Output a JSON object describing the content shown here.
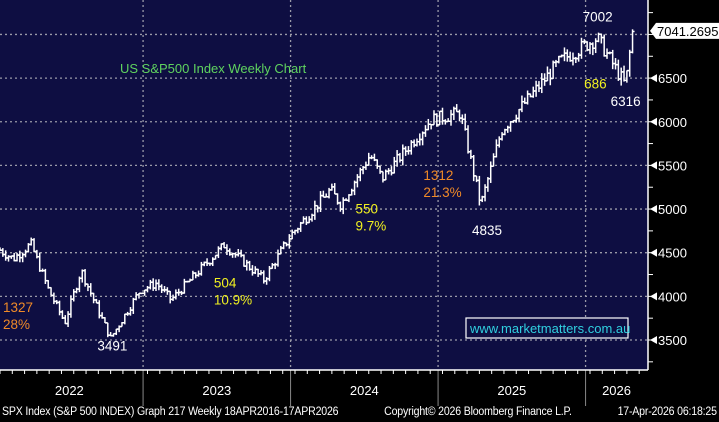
{
  "chart_data": {
    "type": "line",
    "style": "weekly-bars",
    "title": "US S&P500 Index Weekly Chart",
    "website": "www.marketmatters.com.au",
    "last_price_label": "7041.2695",
    "y_ticks": [
      "3500",
      "4000",
      "4500",
      "5000",
      "5500",
      "6000",
      "6500"
    ],
    "ylim": [
      3250,
      7450
    ],
    "x_ticks": [
      "2022",
      "2023",
      "2024",
      "2025",
      "2026"
    ],
    "xlim": [
      2022.03,
      2026.42
    ],
    "grid": true,
    "path": [
      [
        2022.03,
        4530
      ],
      [
        2022.12,
        4430
      ],
      [
        2022.24,
        4600
      ],
      [
        2022.36,
        4070
      ],
      [
        2022.47,
        3700
      ],
      [
        2022.58,
        4300
      ],
      [
        2022.68,
        3900
      ],
      [
        2022.78,
        3520
      ],
      [
        2022.98,
        4070
      ],
      [
        2023.09,
        4150
      ],
      [
        2023.19,
        3960
      ],
      [
        2023.55,
        4590
      ],
      [
        2023.82,
        4190
      ],
      [
        2024.0,
        4700
      ],
      [
        2024.27,
        5220
      ],
      [
        2024.34,
        5050
      ],
      [
        2024.54,
        5620
      ],
      [
        2024.62,
        5350
      ],
      [
        2024.95,
        6020
      ],
      [
        2025.15,
        6100
      ],
      [
        2025.29,
        5050
      ],
      [
        2025.43,
        5900
      ],
      [
        2025.83,
        6700
      ],
      [
        2026.08,
        6960
      ],
      [
        2026.27,
        6420
      ],
      [
        2026.32,
        7041
      ]
    ],
    "annotations": [
      {
        "lines": [
          "1327",
          "28%"
        ],
        "color": "#f08a28",
        "x": 2022.05,
        "y": 3820
      },
      {
        "text": "3491",
        "color": "#ffffff",
        "x": 2022.69,
        "y": 3380
      },
      {
        "lines": [
          "504",
          "10.9%"
        ],
        "color": "#f0f020",
        "x": 2023.48,
        "y": 4100
      },
      {
        "lines": [
          "550",
          "9.7%"
        ],
        "color": "#f0f020",
        "x": 2024.44,
        "y": 4950
      },
      {
        "lines": [
          "1312",
          "21.3%"
        ],
        "color": "#f08a28",
        "x": 2024.9,
        "y": 5330
      },
      {
        "text": "4835",
        "color": "#ffffff",
        "x": 2025.23,
        "y": 4700
      },
      {
        "text": "7002",
        "color": "#ffffff",
        "x": 2025.98,
        "y": 7150
      },
      {
        "text": "686",
        "color": "#f0f020",
        "x": 2025.99,
        "y": 6380
      },
      {
        "text": "6316",
        "color": "#ffffff",
        "x": 2026.17,
        "y": 6180
      }
    ],
    "colors": {
      "background": "#0e0e42",
      "bars": "#ffffff",
      "grid": "#9a9aa8",
      "title": "#5fd35f",
      "website": "#30d0e0"
    }
  },
  "footer": {
    "left": "SPX Index (S&P 500 INDEX) Graph 217 Weekly 18APR2016-17APR2026",
    "center": "Copyright© 2026 Bloomberg Finance L.P.",
    "right": "17-Apr-2026 06:18:25"
  }
}
